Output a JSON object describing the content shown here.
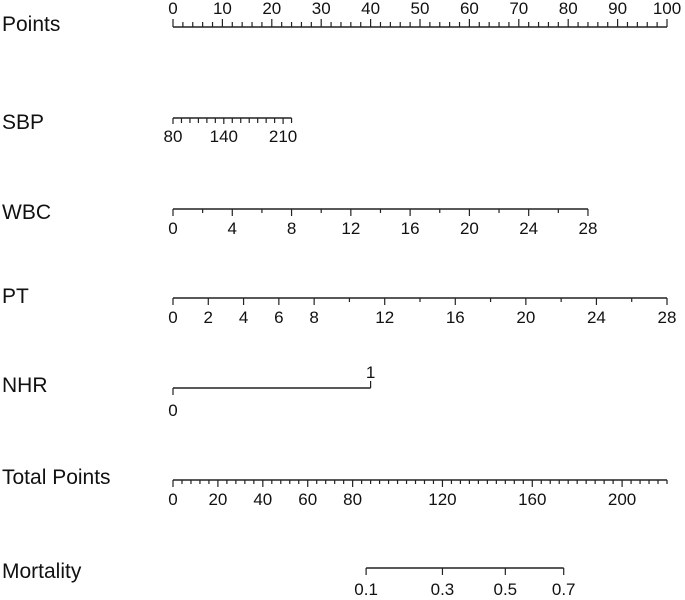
{
  "chart_data": {
    "type": "nomogram",
    "points_scale": {
      "label": "Points",
      "range": [
        0,
        100
      ],
      "tick_labels": [
        "0",
        "10",
        "20",
        "30",
        "40",
        "50",
        "60",
        "70",
        "80",
        "90",
        "100"
      ],
      "tick_values": [
        0,
        10,
        20,
        30,
        40,
        50,
        60,
        70,
        80,
        90,
        100
      ],
      "minor_step": 2
    },
    "variables": [
      {
        "name": "SBP",
        "range": [
          80,
          220
        ],
        "points_range": [
          0,
          24
        ],
        "tick_labels": [
          "80",
          "140",
          "210"
        ],
        "tick_values": [
          80,
          140,
          210
        ],
        "minor_step": 10
      },
      {
        "name": "WBC",
        "range": [
          0,
          28
        ],
        "points_range": [
          0,
          84
        ],
        "tick_labels": [
          "0",
          "4",
          "8",
          "12",
          "16",
          "20",
          "24",
          "28"
        ],
        "tick_values": [
          0,
          4,
          8,
          12,
          16,
          20,
          24,
          28
        ],
        "minor_step": 2
      },
      {
        "name": "PT",
        "range": [
          0,
          28
        ],
        "points_range": [
          0,
          100
        ],
        "tick_labels": [
          "0",
          "2",
          "4",
          "6",
          "8",
          "12",
          "16",
          "20",
          "24",
          "28"
        ],
        "tick_values": [
          0,
          2,
          4,
          6,
          8,
          12,
          16,
          20,
          24,
          28
        ],
        "minor_step": 2
      },
      {
        "name": "NHR",
        "categories": [
          "0",
          "1"
        ],
        "points": [
          0,
          40
        ]
      }
    ],
    "total_points": {
      "label": "Total Points",
      "range": [
        0,
        220
      ],
      "tick_labels": [
        "0",
        "20",
        "40",
        "60",
        "80",
        "120",
        "160",
        "200"
      ],
      "tick_values": [
        0,
        20,
        40,
        60,
        80,
        120,
        160,
        200
      ],
      "minor_step": 4
    },
    "mortality": {
      "label": "Mortality",
      "tick_labels": [
        "0.1",
        "0.3",
        "0.5",
        "0.7"
      ],
      "tick_values": [
        0.1,
        0.3,
        0.5,
        0.7
      ],
      "total_points_at_ticks": [
        86,
        120,
        148,
        174
      ]
    }
  }
}
